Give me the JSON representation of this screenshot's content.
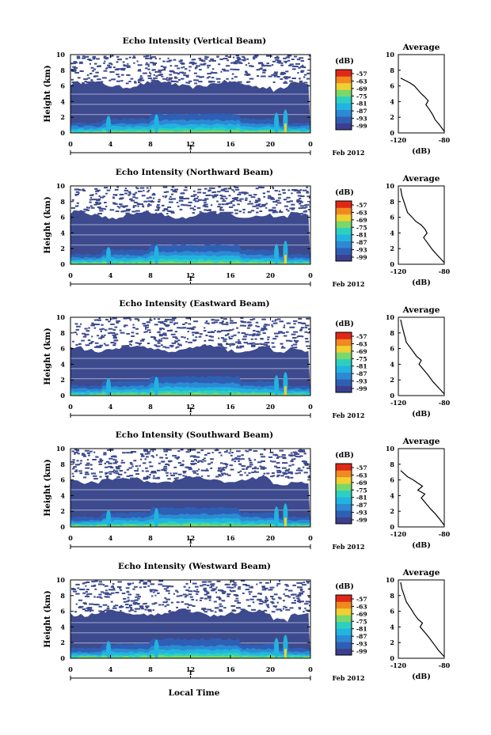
{
  "figure": {
    "xlabel": "Local Time",
    "date_label": "Feb 2012",
    "colorbar_unit": "(dB)",
    "colorbar_ticks": [
      "-57",
      "-63",
      "-69",
      "-75",
      "-81",
      "-87",
      "-93",
      "-99"
    ],
    "profile_title": "Average",
    "profile_xlabel": "(dB)"
  },
  "colors": {
    "background": "#3d4a8e",
    "colorbar": [
      "#3c3f8f",
      "#2f5fb4",
      "#2c8ad4",
      "#22b4e0",
      "#2dd0c0",
      "#7ad86a",
      "#f0d030",
      "#f08a20",
      "#e02818"
    ],
    "axis": "#000000"
  },
  "chart_data": [
    {
      "type": "heatmap",
      "title": "Echo Intensity (Vertical Beam)",
      "ylabel": "Height (km)",
      "x_ticks": [
        "0",
        "4",
        "8",
        "12",
        "16",
        "20",
        "0"
      ],
      "day_tick": "1",
      "y_ticks": [
        "0",
        "2",
        "4",
        "6",
        "8",
        "10"
      ],
      "xlim": [
        0,
        24
      ],
      "ylim": [
        0,
        10
      ],
      "cloud_top_km": 6.2,
      "profile": {
        "title": "Average",
        "xlabel": "(dB)",
        "x_ticks": [
          "-120",
          "-80"
        ],
        "xlim": [
          -120,
          -80
        ],
        "y_ticks": [
          "0",
          "2",
          "4",
          "6",
          "8",
          "10"
        ],
        "ylim": [
          0,
          10
        ],
        "x": [
          -118,
          -110,
          -106,
          -103,
          -100,
          -97,
          -94,
          -96,
          -93,
          -90,
          -88,
          -84,
          -80
        ],
        "y": [
          7.0,
          6.4,
          6.0,
          5.5,
          5.0,
          4.6,
          4.1,
          3.6,
          3.0,
          2.3,
          1.7,
          1.0,
          0.2
        ]
      }
    },
    {
      "type": "heatmap",
      "title": "Echo Intensity (Northward Beam)",
      "ylabel": "Height (km)",
      "x_ticks": [
        "0",
        "4",
        "8",
        "12",
        "16",
        "20",
        "0"
      ],
      "day_tick": "1",
      "y_ticks": [
        "0",
        "2",
        "4",
        "6",
        "8",
        "10"
      ],
      "xlim": [
        0,
        24
      ],
      "ylim": [
        0,
        10
      ],
      "cloud_top_km": 6.3,
      "profile": {
        "title": "Average",
        "xlabel": "(dB)",
        "x_ticks": [
          "-120",
          "-80"
        ],
        "xlim": [
          -120,
          -80
        ],
        "y_ticks": [
          "0",
          "2",
          "4",
          "6",
          "8",
          "10"
        ],
        "ylim": [
          0,
          10
        ],
        "x": [
          -118,
          -117,
          -112,
          -108,
          -105,
          -100,
          -97,
          -95,
          -98,
          -94,
          -90,
          -85,
          -80
        ],
        "y": [
          9.7,
          8.8,
          6.6,
          6.0,
          5.5,
          5.0,
          4.5,
          4.0,
          3.4,
          2.6,
          1.8,
          1.0,
          0.2
        ]
      }
    },
    {
      "type": "heatmap",
      "title": "Echo Intensity (Eastward Beam)",
      "ylabel": "Height (km)",
      "x_ticks": [
        "0",
        "4",
        "8",
        "12",
        "16",
        "20",
        "0"
      ],
      "day_tick": "1",
      "y_ticks": [
        "0",
        "2",
        "4",
        "6",
        "8",
        "10"
      ],
      "xlim": [
        0,
        24
      ],
      "ylim": [
        0,
        10
      ],
      "cloud_top_km": 6.0,
      "profile": {
        "title": "Average",
        "xlabel": "(dB)",
        "x_ticks": [
          "-120",
          "-80"
        ],
        "xlim": [
          -120,
          -80
        ],
        "y_ticks": [
          "0",
          "2",
          "4",
          "6",
          "8",
          "10"
        ],
        "ylim": [
          0,
          10
        ],
        "x": [
          -118,
          -117,
          -113,
          -110,
          -107,
          -104,
          -100,
          -102,
          -98,
          -94,
          -90,
          -85,
          -80
        ],
        "y": [
          9.7,
          9.0,
          6.8,
          6.2,
          5.6,
          5.0,
          4.5,
          4.0,
          3.3,
          2.6,
          1.8,
          1.0,
          0.2
        ]
      }
    },
    {
      "type": "heatmap",
      "title": "Echo Intensity (Southward Beam)",
      "ylabel": "Height (km)",
      "x_ticks": [
        "0",
        "4",
        "8",
        "12",
        "16",
        "20",
        "0"
      ],
      "day_tick": "1",
      "y_ticks": [
        "0",
        "2",
        "4",
        "6",
        "8",
        "10"
      ],
      "xlim": [
        0,
        24
      ],
      "ylim": [
        0,
        10
      ],
      "cloud_top_km": 6.0,
      "profile": {
        "title": "Average",
        "xlabel": "(dB)",
        "x_ticks": [
          "-120",
          "-80"
        ],
        "xlim": [
          -120,
          -80
        ],
        "y_ticks": [
          "0",
          "2",
          "4",
          "6",
          "8",
          "10"
        ],
        "ylim": [
          0,
          10
        ],
        "x": [
          -118,
          -112,
          -107,
          -103,
          -99,
          -103,
          -97,
          -100,
          -96,
          -92,
          -88,
          -84,
          -80
        ],
        "y": [
          7.2,
          6.4,
          6.0,
          5.6,
          5.2,
          4.7,
          4.2,
          3.7,
          3.0,
          2.3,
          1.7,
          1.0,
          0.2
        ]
      }
    },
    {
      "type": "heatmap",
      "title": "Echo Intensity (Westward Beam)",
      "ylabel": "Height (km)",
      "x_ticks": [
        "0",
        "4",
        "8",
        "12",
        "16",
        "20",
        "0"
      ],
      "day_tick": "1",
      "y_ticks": [
        "0",
        "2",
        "4",
        "6",
        "8",
        "10"
      ],
      "xlim": [
        0,
        24
      ],
      "ylim": [
        0,
        10
      ],
      "cloud_top_km": 5.8,
      "profile": {
        "title": "Average",
        "xlabel": "(dB)",
        "x_ticks": [
          "-120",
          "-80"
        ],
        "xlim": [
          -120,
          -80
        ],
        "y_ticks": [
          "0",
          "2",
          "4",
          "6",
          "8",
          "10"
        ],
        "ylim": [
          0,
          10
        ],
        "x": [
          -118,
          -117,
          -113,
          -109,
          -106,
          -103,
          -99,
          -101,
          -97,
          -93,
          -89,
          -85,
          -80
        ],
        "y": [
          9.7,
          8.9,
          7.2,
          6.3,
          5.6,
          5.0,
          4.5,
          4.0,
          3.3,
          2.6,
          1.8,
          1.0,
          0.2
        ]
      }
    }
  ]
}
